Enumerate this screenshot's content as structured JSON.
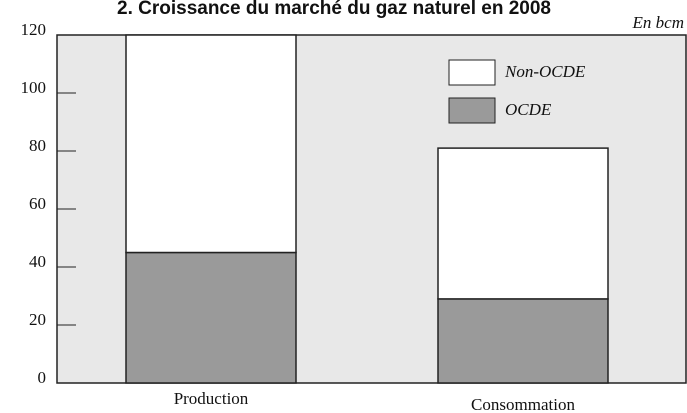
{
  "chart_data": {
    "type": "stacked_bar",
    "title": "2. Croissance du marché du gaz naturel en 2008",
    "unit_label": "En bcm",
    "categories": [
      "Production",
      "Consommation"
    ],
    "series": [
      {
        "name": "OCDE",
        "color": "#9a9a9a",
        "values": [
          45,
          29
        ]
      },
      {
        "name": "Non-OCDE",
        "color": "#ffffff",
        "values": [
          75,
          52
        ]
      }
    ],
    "ylim": [
      0,
      120
    ],
    "yticks": [
      0,
      20,
      40,
      60,
      80,
      100,
      120
    ]
  }
}
